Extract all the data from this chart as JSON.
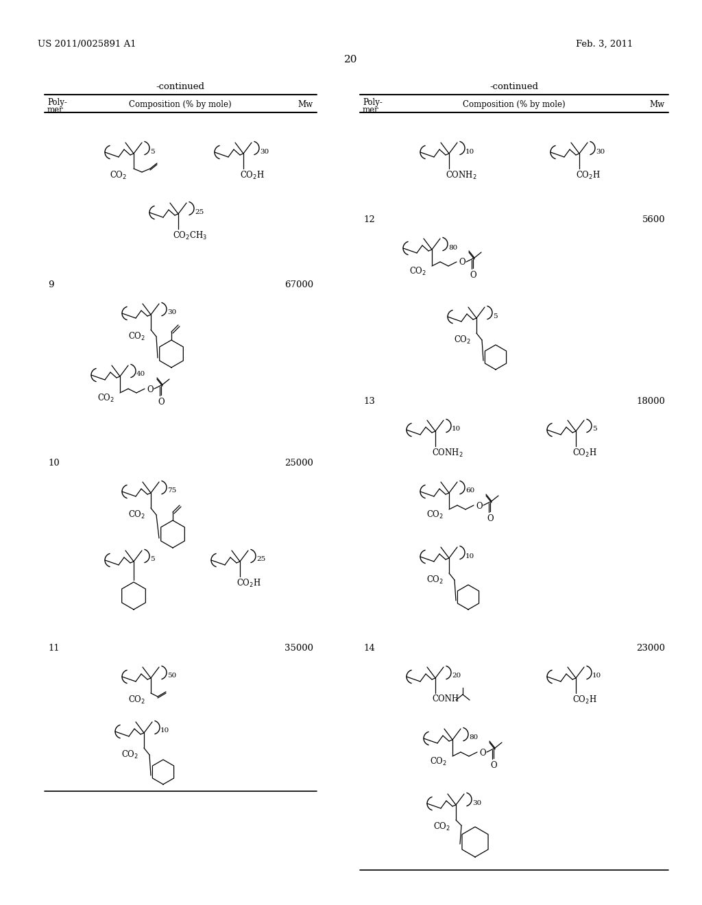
{
  "bg_color": "#ffffff",
  "header_left": "US 2011/0025891 A1",
  "header_right": "Feb. 3, 2011",
  "page_number": "20"
}
